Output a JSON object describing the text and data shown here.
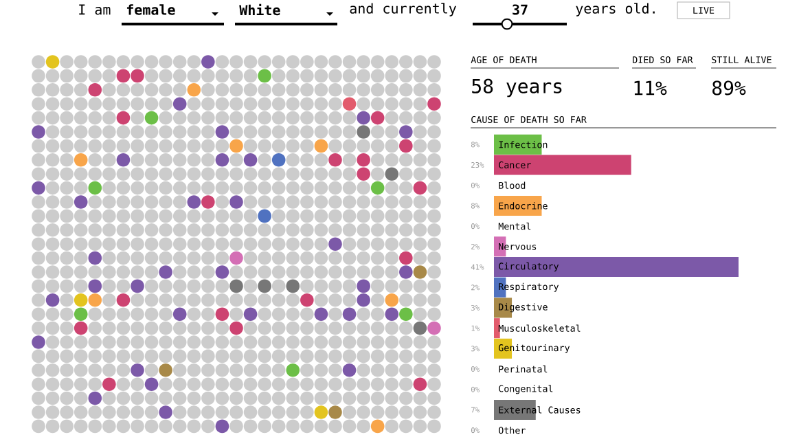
{
  "chart_data": [
    {
      "type": "other",
      "annotations": [
        "I am",
        "female",
        "White",
        "and currently",
        "37",
        "years old.",
        "LIVE"
      ]
    },
    {
      "type": "other",
      "annotations": [
        "AGE OF DEATH",
        "58 years",
        "DIED SO FAR",
        "11%",
        "STILL ALIVE",
        "89%"
      ]
    },
    {
      "type": "bar",
      "orientation": "horizontal",
      "title": "CAUSE OF DEATH SO FAR",
      "categories": [
        "Infection",
        "Cancer",
        "Blood",
        "Endocrine",
        "Mental",
        "Nervous",
        "Circulatory",
        "Respiratory",
        "Digestive",
        "Musculoskeletal",
        "Genitourinary",
        "Perinatal",
        "Congenital",
        "External Causes",
        "Other"
      ],
      "values": [
        8,
        23,
        0,
        8,
        0,
        2,
        41,
        2,
        3,
        1,
        3,
        0,
        0,
        7,
        0
      ],
      "value_labels": [
        "8%",
        "23%",
        "0%",
        "8%",
        "0%",
        "2%",
        "41%",
        "2%",
        "3%",
        "1%",
        "3%",
        "0%",
        "0%",
        "7%",
        "0%"
      ],
      "colors": [
        "#6cbf47",
        "#cd4371",
        "#9e2a2b",
        "#f8a54a",
        "#5c8fc4",
        "#d46fb5",
        "#7c59a8",
        "#5072c0",
        "#a88948",
        "#e25b6c",
        "#e3c41f",
        "#8fd0c8",
        "#c7a0d8",
        "#777777",
        "#333333"
      ]
    }
  ]
}
